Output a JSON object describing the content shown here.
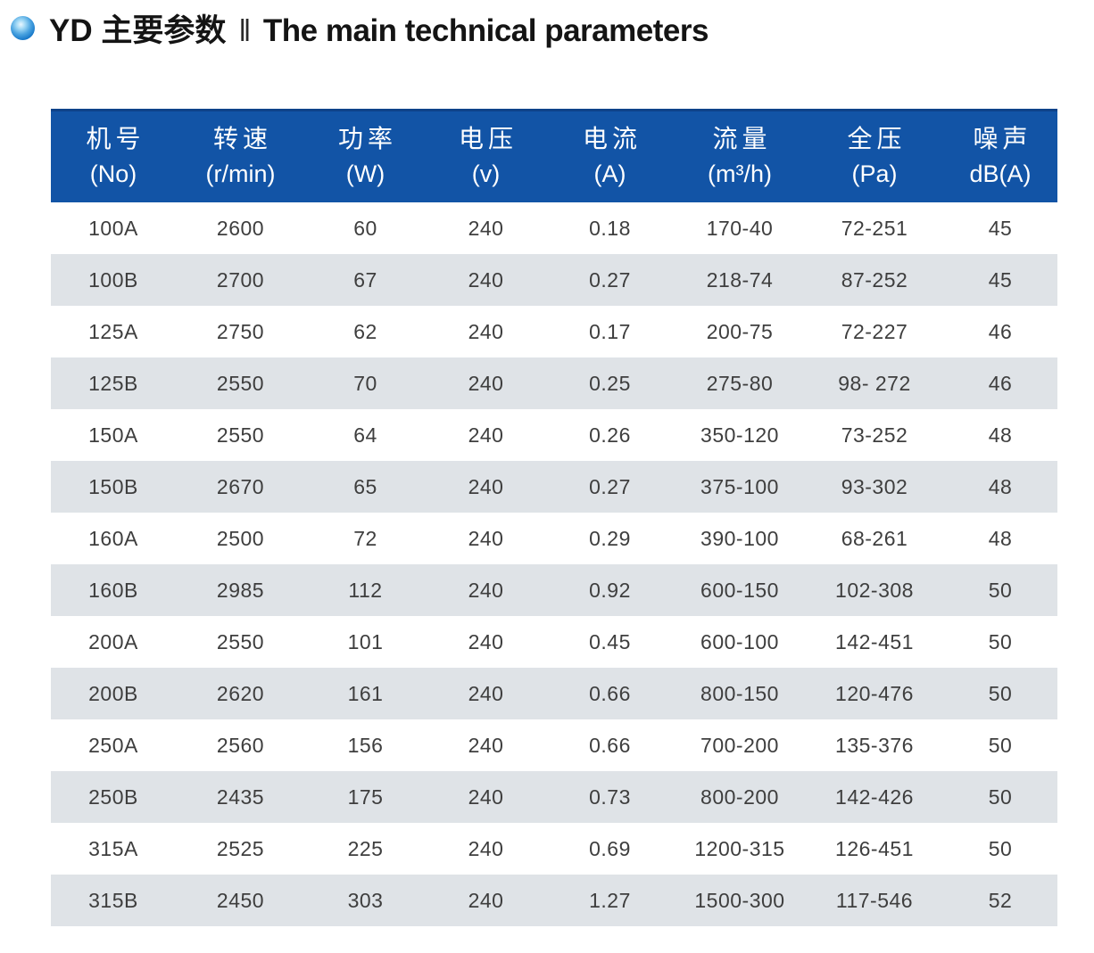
{
  "title": {
    "product": "YD 主要参数",
    "separator": "‖",
    "english": "The main technical parameters"
  },
  "table": {
    "columns": [
      {
        "name": "机号",
        "unit": "(No)"
      },
      {
        "name": "转速",
        "unit": "(r/min)"
      },
      {
        "name": "功率",
        "unit": "(W)"
      },
      {
        "name": "电压",
        "unit": "(v)"
      },
      {
        "name": "电流",
        "unit": "(A)"
      },
      {
        "name": "流量",
        "unit": "(m³/h)"
      },
      {
        "name": "全压",
        "unit": "(Pa)"
      },
      {
        "name": "噪声",
        "unit": "dB(A)"
      }
    ],
    "rows": [
      [
        "100A",
        "2600",
        "60",
        "240",
        "0.18",
        "170-40",
        "72-251",
        "45"
      ],
      [
        "100B",
        "2700",
        "67",
        "240",
        "0.27",
        "218-74",
        "87-252",
        "45"
      ],
      [
        "125A",
        "2750",
        "62",
        "240",
        "0.17",
        "200-75",
        "72-227",
        "46"
      ],
      [
        "125B",
        "2550",
        "70",
        "240",
        "0.25",
        "275-80",
        "98- 272",
        "46"
      ],
      [
        "150A",
        "2550",
        "64",
        "240",
        "0.26",
        "350-120",
        "73-252",
        "48"
      ],
      [
        "150B",
        "2670",
        "65",
        "240",
        "0.27",
        "375-100",
        "93-302",
        "48"
      ],
      [
        "160A",
        "2500",
        "72",
        "240",
        "0.29",
        "390-100",
        "68-261",
        "48"
      ],
      [
        "160B",
        "2985",
        "112",
        "240",
        "0.92",
        "600-150",
        "102-308",
        "50"
      ],
      [
        "200A",
        "2550",
        "101",
        "240",
        "0.45",
        "600-100",
        "142-451",
        "50"
      ],
      [
        "200B",
        "2620",
        "161",
        "240",
        "0.66",
        "800-150",
        "120-476",
        "50"
      ],
      [
        "250A",
        "2560",
        "156",
        "240",
        "0.66",
        "700-200",
        "135-376",
        "50"
      ],
      [
        "250B",
        "2435",
        "175",
        "240",
        "0.73",
        "800-200",
        "142-426",
        "50"
      ],
      [
        "315A",
        "2525",
        "225",
        "240",
        "0.69",
        "1200-315",
        "126-451",
        "50"
      ],
      [
        "315B",
        "2450",
        "303",
        "240",
        "1.27",
        "1500-300",
        "117-546",
        "52"
      ]
    ]
  },
  "colors": {
    "header_bg": "#1254a6",
    "alt_row_bg": "#dfe3e7",
    "bullet_blue": "#1576c8"
  }
}
